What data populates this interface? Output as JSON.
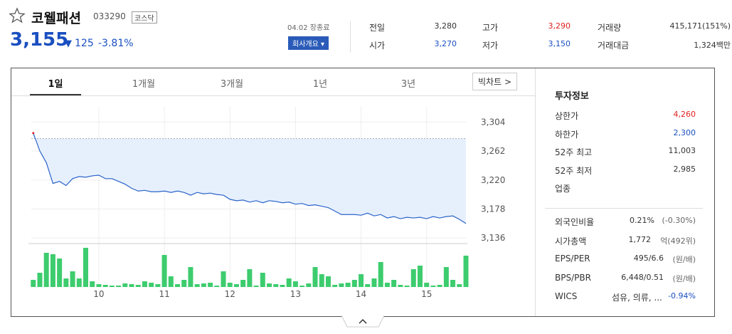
{
  "header": {
    "name": "코웰패션",
    "code": "033290",
    "market": "코스닥",
    "price": "3,155",
    "change": "125",
    "change_rate": "-3.81%",
    "status": "04.02 장종료",
    "company_button": "회사개요"
  },
  "stats": [
    [
      "전일",
      "3,280"
    ],
    [
      "시가",
      "3,270"
    ],
    [
      "고가",
      "3,290"
    ],
    [
      "저가",
      "3,150"
    ],
    [
      "거래량",
      "415,171(151%)"
    ],
    [
      "거래대금",
      "1,324백만"
    ]
  ],
  "tabs": [
    "1일",
    "1개월",
    "3개월",
    "1년",
    "3년"
  ],
  "big_chart": "빅차트",
  "info": {
    "title": "투자정보",
    "rows": [
      [
        "상한가",
        "4,260",
        ""
      ],
      [
        "하한가",
        "2,300",
        ""
      ],
      [
        "52주 최고",
        "11,003",
        ""
      ],
      [
        "52주 최저",
        "2,985",
        ""
      ],
      [
        "업종",
        "",
        ""
      ],
      [
        "외국인비율",
        "0.21%",
        "(-0.30%)"
      ],
      [
        "시가총액",
        "1,772",
        "억(492위)"
      ],
      [
        "EPS/PER",
        "495/6.6",
        "(원/배)"
      ],
      [
        "BPS/PBR",
        "6,448/0.51",
        "(원/배)"
      ],
      [
        "WICS",
        "섬유, 의류, ...",
        "-0.94%"
      ]
    ]
  },
  "chart_data": {
    "type": "line",
    "color": "#2a63c9",
    "fill": "#e6f0fd",
    "baseline": 3280,
    "bar_color": "#3dcc6e",
    "grid": true,
    "xlim": [
      8.97,
      15.6
    ],
    "xticks": [
      10,
      11,
      12,
      13,
      14,
      15
    ],
    "ylim": [
      3130,
      3326
    ],
    "yticks": [
      {
        "value": 3304,
        "label": "3,304"
      },
      {
        "value": 3262,
        "label": "3,262"
      },
      {
        "value": 3220,
        "label": "3,220"
      },
      {
        "value": 3178,
        "label": "3,178"
      },
      {
        "value": 3136,
        "label": "3,136"
      }
    ],
    "x": [
      9.0,
      9.1,
      9.2,
      9.3,
      9.4,
      9.5,
      9.6,
      9.7,
      9.8,
      9.9,
      10.0,
      10.1,
      10.2,
      10.3,
      10.4,
      10.5,
      10.6,
      10.7,
      10.8,
      10.9,
      11.0,
      11.1,
      11.2,
      11.3,
      11.4,
      11.5,
      11.6,
      11.7,
      11.8,
      11.9,
      12.0,
      12.1,
      12.2,
      12.3,
      12.4,
      12.5,
      12.6,
      12.7,
      12.8,
      12.9,
      13.0,
      13.1,
      13.2,
      13.3,
      13.4,
      13.5,
      13.6,
      13.7,
      13.8,
      13.9,
      14.0,
      14.1,
      14.2,
      14.3,
      14.4,
      14.5,
      14.6,
      14.7,
      14.8,
      14.9,
      15.0,
      15.1,
      15.2,
      15.3,
      15.4,
      15.5,
      15.6
    ],
    "values": [
      3288,
      3262,
      3245,
      3215,
      3218,
      3212,
      3222,
      3225,
      3224,
      3226,
      3227,
      3222,
      3222,
      3218,
      3214,
      3208,
      3204,
      3205,
      3203,
      3203,
      3204,
      3202,
      3204,
      3202,
      3198,
      3202,
      3200,
      3201,
      3199,
      3198,
      3192,
      3190,
      3191,
      3188,
      3190,
      3187,
      3190,
      3189,
      3187,
      3188,
      3185,
      3186,
      3183,
      3184,
      3182,
      3180,
      3175,
      3170,
      3170,
      3170,
      3169,
      3172,
      3168,
      3170,
      3165,
      3167,
      3164,
      3166,
      3165,
      3166,
      3164,
      3167,
      3165,
      3167,
      3168,
      3163,
      3157
    ],
    "volume_ylim": [
      0,
      60
    ],
    "volumes": [
      10,
      20,
      48,
      46,
      40,
      12,
      22,
      12,
      55,
      8,
      4,
      3,
      2,
      2,
      5,
      4,
      3,
      8,
      6,
      4,
      45,
      15,
      4,
      10,
      28,
      4,
      5,
      6,
      2,
      22,
      6,
      4,
      10,
      25,
      2,
      20,
      5,
      4,
      3,
      12,
      8,
      2,
      5,
      28,
      18,
      15,
      3,
      5,
      6,
      10,
      18,
      4,
      12,
      35,
      6,
      10,
      3,
      2,
      25,
      30,
      6,
      2,
      3,
      28,
      10,
      4,
      44
    ]
  }
}
